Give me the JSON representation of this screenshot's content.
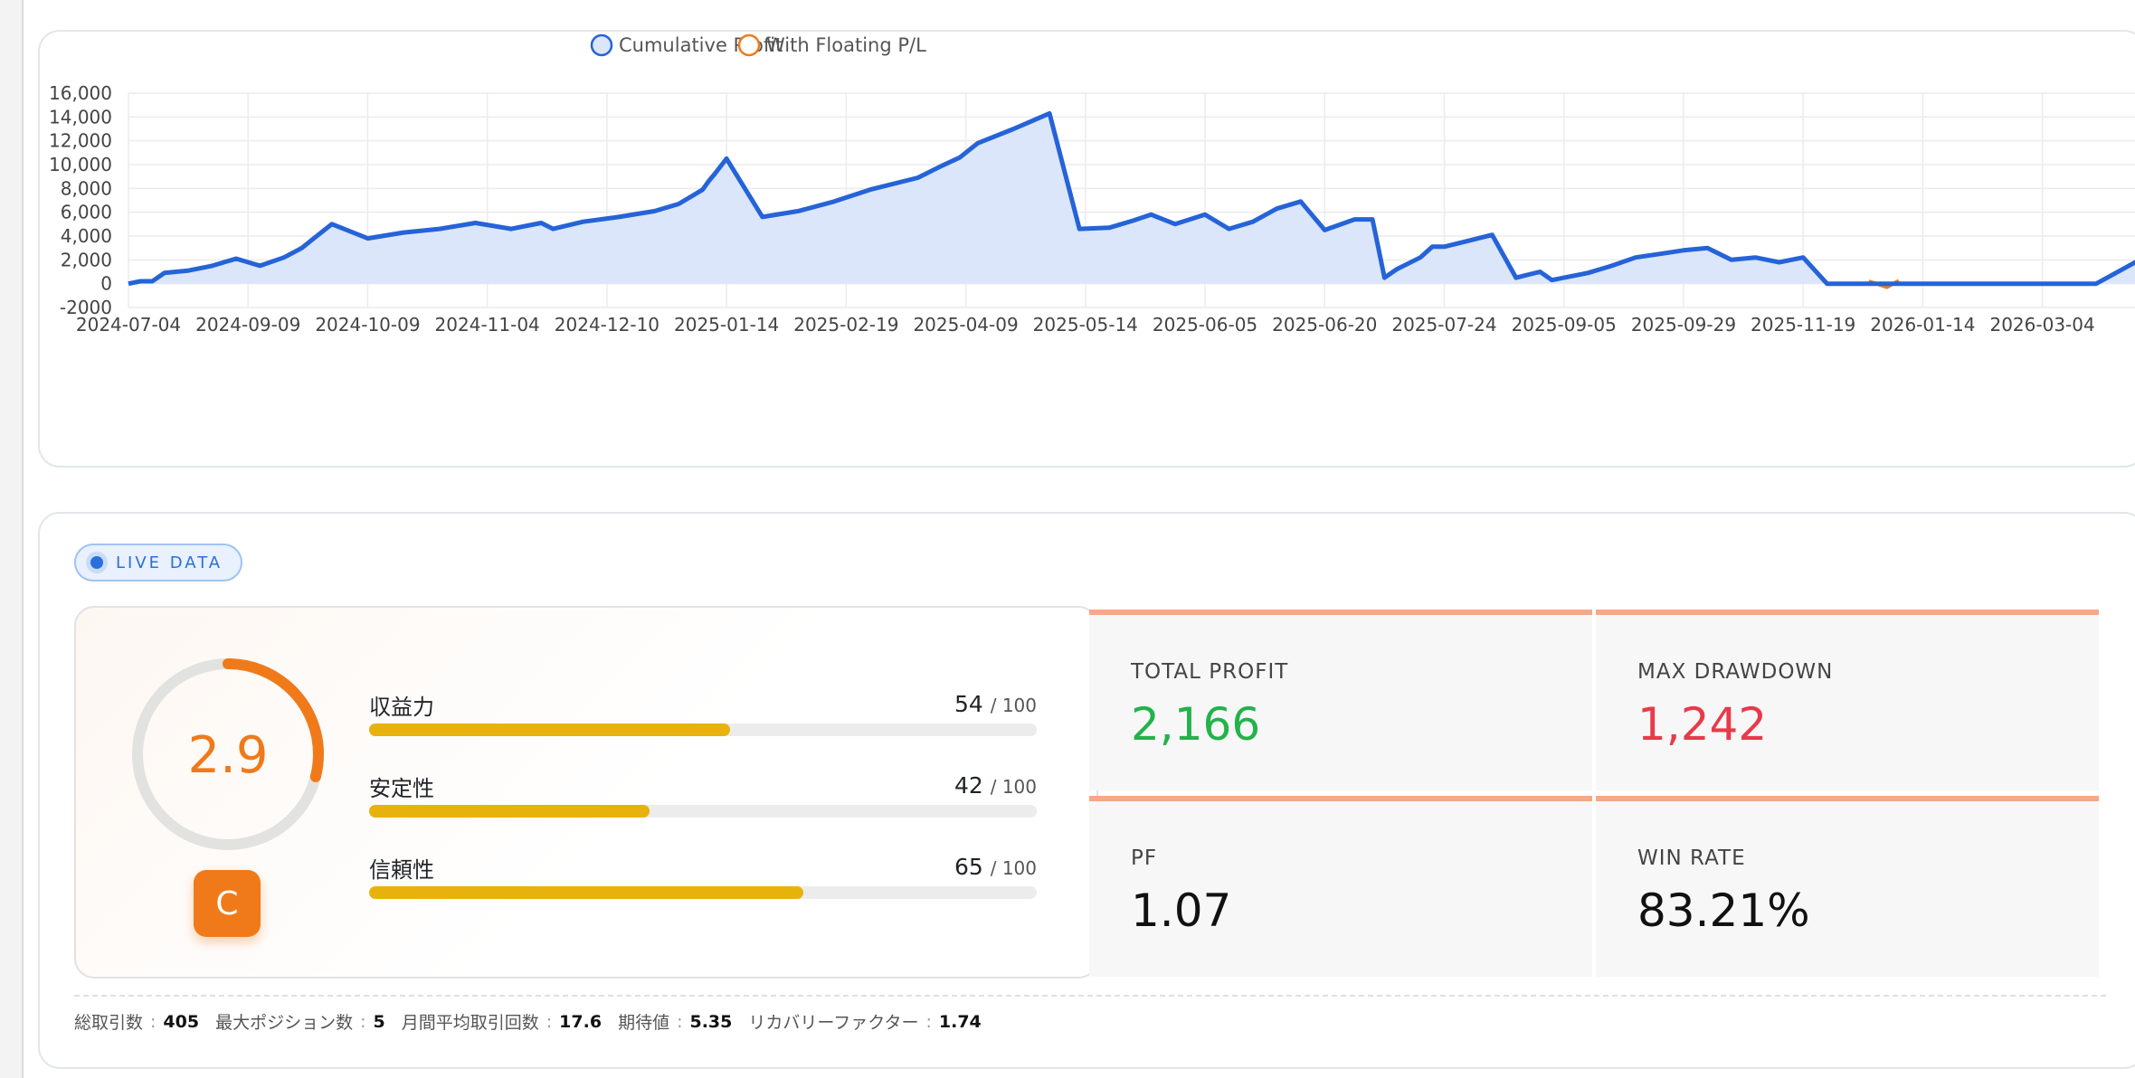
{
  "chart_data": {
    "type": "area",
    "ylim": [
      -2000,
      16000
    ],
    "yticks": [
      16000,
      14000,
      12000,
      10000,
      8000,
      6000,
      4000,
      2000,
      0,
      -2000
    ],
    "ytick_labels": [
      "16,000",
      "14,000",
      "12,000",
      "10,000",
      "8,000",
      "6,000",
      "4,000",
      "2,000",
      "0",
      "-2000"
    ],
    "xtick_labels": [
      "2024-07-04",
      "2024-09-09",
      "2024-10-09",
      "2024-11-04",
      "2024-12-10",
      "2025-01-14",
      "2025-02-19",
      "2025-04-09",
      "2025-05-14",
      "2025-06-05",
      "2025-06-20",
      "2025-07-24",
      "2025-09-05",
      "2025-09-29",
      "2025-11-19",
      "2026-01-14",
      "2026-03-04"
    ],
    "series": [
      {
        "name": "Cumulative Profit",
        "color": "#2563d8",
        "fill": "#dbe6fb",
        "x": [
          0.0,
          0.1,
          0.2,
          0.3,
          0.5,
          0.7,
          0.9,
          1.1,
          1.3,
          1.45,
          1.55,
          1.7,
          2.0,
          2.3,
          2.6,
          2.9,
          3.2,
          3.45,
          3.55,
          3.8,
          4.1,
          4.4,
          4.6,
          4.7,
          4.8,
          4.85,
          4.9,
          5.0,
          5.3,
          5.6,
          5.9,
          6.2,
          6.6,
          6.8,
          6.95,
          7.1,
          7.4,
          7.7,
          7.95,
          8.2,
          8.4,
          8.55,
          8.75,
          9.0,
          9.2,
          9.4,
          9.6,
          9.8,
          10.0,
          10.25,
          10.4,
          10.5,
          10.6,
          10.7,
          10.8,
          10.9,
          11.0,
          11.2,
          11.4,
          11.6,
          11.8,
          11.9,
          12.0,
          12.2,
          12.4,
          12.6,
          12.8,
          13.0,
          13.2,
          13.4,
          13.6,
          13.8,
          14.0,
          14.2,
          14.4,
          14.6,
          14.7,
          14.9,
          15.1,
          15.3,
          15.5,
          15.7,
          15.9,
          16.1,
          16.3,
          16.45,
          16.6,
          16.8,
          17.0
        ],
        "y": [
          0,
          200,
          200,
          900,
          1100,
          1500,
          2100,
          1500,
          2200,
          3000,
          3800,
          5000,
          3800,
          4300,
          4600,
          5100,
          4600,
          5100,
          4600,
          5200,
          5600,
          6100,
          6700,
          7300,
          7900,
          8600,
          9200,
          10500,
          5600,
          6100,
          6900,
          7900,
          8900,
          9900,
          10600,
          11800,
          13000,
          14300,
          4600,
          4700,
          5300,
          5800,
          5000,
          5800,
          4600,
          5200,
          6300,
          6900,
          4500,
          5400,
          5400,
          500,
          1200,
          1700,
          2200,
          3100,
          3100,
          3600,
          4100,
          500,
          1000,
          300,
          500,
          900,
          1500,
          2200,
          2500,
          2800,
          3000,
          2000,
          2200,
          1800,
          2200,
          0,
          0,
          0,
          0,
          0,
          0,
          0,
          0,
          0,
          0,
          0,
          0,
          0,
          0,
          0,
          0
        ],
        "render_end": 2200
      },
      {
        "name": "With Floating P/L",
        "color": "#f07a1a",
        "notes": "overlaps Cumulative Profit except brief dips near 2026-01"
      }
    ]
  },
  "live": {
    "badge": "LIVE DATA"
  },
  "score": {
    "value": "2.9",
    "gauge_fraction": 0.29,
    "grade": "C",
    "metrics": [
      {
        "name": "収益力",
        "score": "54",
        "max": "/ 100",
        "fraction": 0.54
      },
      {
        "name": "安定性",
        "score": "42",
        "max": "/ 100",
        "fraction": 0.42
      },
      {
        "name": "信頼性",
        "score": "65",
        "max": "/ 100",
        "fraction": 0.65
      }
    ]
  },
  "tiles": [
    {
      "label": "TOTAL PROFIT",
      "value": "2,166",
      "color": "#22b34a"
    },
    {
      "label": "MAX DRAWDOWN",
      "value": "1,242",
      "color": "#e83a4a"
    },
    {
      "label": "PF",
      "value": "1.07",
      "color": "#111111"
    },
    {
      "label": "WIN RATE",
      "value": "83.21%",
      "color": "#111111"
    }
  ],
  "footer": [
    {
      "label": "総取引数",
      "value": "405"
    },
    {
      "label": "最大ポジション数",
      "value": "5"
    },
    {
      "label": "月間平均取引回数",
      "value": "17.6"
    },
    {
      "label": "期待値",
      "value": "5.35"
    },
    {
      "label": "リカバリーファクター",
      "value": "1.74"
    }
  ]
}
